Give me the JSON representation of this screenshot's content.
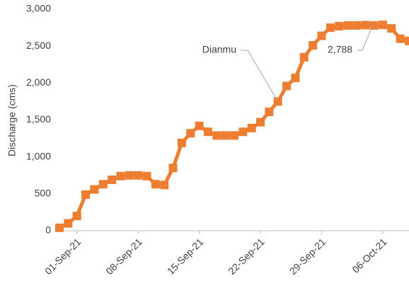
{
  "chart_data": {
    "type": "line",
    "y_label": "Discharge (cms)",
    "x": [
      "2021-08-30",
      "2021-08-31",
      "2021-09-01",
      "2021-09-02",
      "2021-09-03",
      "2021-09-04",
      "2021-09-05",
      "2021-09-06",
      "2021-09-07",
      "2021-09-08",
      "2021-09-09",
      "2021-09-10",
      "2021-09-11",
      "2021-09-12",
      "2021-09-13",
      "2021-09-14",
      "2021-09-15",
      "2021-09-16",
      "2021-09-17",
      "2021-09-18",
      "2021-09-19",
      "2021-09-20",
      "2021-09-21",
      "2021-09-22",
      "2021-09-23",
      "2021-09-24",
      "2021-09-25",
      "2021-09-26",
      "2021-09-27",
      "2021-09-28",
      "2021-09-29",
      "2021-09-30",
      "2021-10-01",
      "2021-10-02",
      "2021-10-03",
      "2021-10-04",
      "2021-10-05",
      "2021-10-06",
      "2021-10-07",
      "2021-10-08",
      "2021-10-09"
    ],
    "series": [
      {
        "name": "Dianmu",
        "color": "#ed7d31",
        "values": [
          40,
          100,
          200,
          490,
          560,
          630,
          690,
          740,
          750,
          750,
          740,
          630,
          620,
          850,
          1190,
          1320,
          1420,
          1340,
          1290,
          1290,
          1290,
          1340,
          1390,
          1470,
          1610,
          1750,
          1960,
          2070,
          2350,
          2510,
          2640,
          2750,
          2770,
          2780,
          2780,
          2785,
          2780,
          2788,
          2740,
          2600,
          2570
        ]
      }
    ],
    "annotations": [
      {
        "text": "Dianmu"
      },
      {
        "text": "2,788"
      }
    ],
    "xlim": [
      "2021-08-30",
      "2021-10-09"
    ],
    "xticks": [
      {
        "value": "2021-09-01",
        "label": "01-Sep-21"
      },
      {
        "value": "2021-09-08",
        "label": "08-Sep-21"
      },
      {
        "value": "2021-09-15",
        "label": "15-Sep-21"
      },
      {
        "value": "2021-09-22",
        "label": "22-Sep-21"
      },
      {
        "value": "2021-09-29",
        "label": "29-Sep-21"
      },
      {
        "value": "2021-10-06",
        "label": "06-Oct-21"
      }
    ],
    "ylim": [
      0,
      3000
    ],
    "yticks": [
      0,
      500,
      {
        "value": 1000,
        "label": "1,000"
      },
      {
        "value": 1500,
        "label": "1,500"
      },
      {
        "value": 2000,
        "label": "2,000"
      },
      {
        "value": 2500,
        "label": "2,500"
      },
      {
        "value": 3000,
        "label": "3,000"
      }
    ],
    "grid": false
  }
}
